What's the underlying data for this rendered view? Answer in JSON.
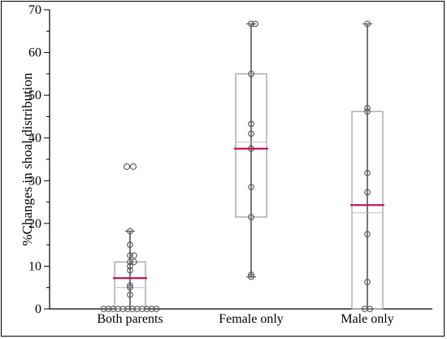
{
  "chart_data": {
    "type": "box",
    "title": "",
    "xlabel": "",
    "ylabel": "%Changes in shoal distribution",
    "ylim": [
      0,
      70
    ],
    "yticks": [
      0,
      10,
      20,
      30,
      40,
      50,
      60,
      70
    ],
    "yticks_minor": [
      5,
      15,
      25,
      35,
      45,
      55,
      65
    ],
    "grid": false,
    "categories": [
      "Both parents",
      "Female only",
      "Male only"
    ],
    "boxes": [
      {
        "category": "Both parents",
        "whisker_low": 0,
        "q1": 0,
        "median": 5,
        "mean": 7.2,
        "q3": 11,
        "whisker_high": 18.2,
        "points": [
          0,
          0,
          0,
          0,
          0,
          0,
          0,
          0,
          0,
          0,
          0,
          0,
          3.3,
          5,
          5.5,
          9,
          10,
          11,
          11,
          12.5,
          12.5,
          15,
          18.2
        ],
        "outliers": [
          33.3,
          33.3
        ]
      },
      {
        "category": "Female only",
        "whisker_low": 7.5,
        "q1": 21.5,
        "median": 39,
        "mean": 37.5,
        "q3": 55,
        "whisker_high": 66.7,
        "points": [
          7.5,
          8,
          21.5,
          28.5,
          37.5,
          41,
          43.3,
          55,
          66.7,
          66.7
        ],
        "outliers": []
      },
      {
        "category": "Male only",
        "whisker_low": 0,
        "q1": 0,
        "median": 22.5,
        "mean": 24.3,
        "q3": 46.2,
        "whisker_high": 66.7,
        "points": [
          0,
          0,
          6.3,
          17.5,
          27.3,
          31.8,
          46.2,
          47,
          66.7
        ],
        "outliers": []
      }
    ],
    "colors": {
      "box": "#9a9a9a",
      "whisker": "#555555",
      "point": "#555555",
      "mean_line": "#c2185b",
      "median_line": "#bbbbbb"
    }
  }
}
